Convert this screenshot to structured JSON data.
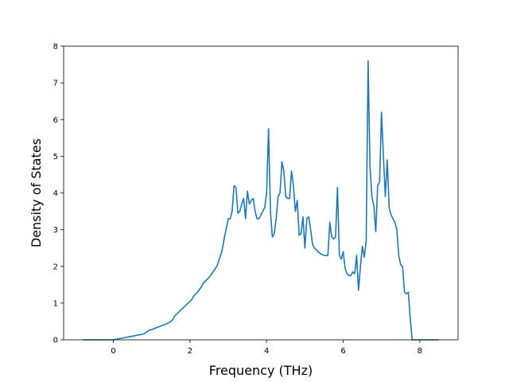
{
  "chart_data": {
    "type": "line",
    "title": "",
    "xlabel": "Frequency (THz)",
    "ylabel": "Density of States",
    "xlim": [
      -1.3,
      9.0
    ],
    "ylim": [
      0,
      8
    ],
    "xticks": [
      0,
      2,
      4,
      6,
      8
    ],
    "yticks": [
      0,
      1,
      2,
      3,
      4,
      5,
      6,
      7,
      8
    ],
    "grid": false,
    "legend": "none",
    "series": [
      {
        "color": "#1f77b4",
        "x": [
          -0.8,
          -0.6,
          -0.4,
          -0.2,
          0.0,
          0.2,
          0.4,
          0.6,
          0.8,
          0.85,
          0.9,
          0.95,
          1.0,
          1.1,
          1.2,
          1.3,
          1.4,
          1.5,
          1.55,
          1.6,
          1.7,
          1.8,
          1.9,
          2.0,
          2.05,
          2.1,
          2.2,
          2.3,
          2.35,
          2.4,
          2.5,
          2.6,
          2.7,
          2.8,
          2.85,
          2.9,
          3.0,
          3.05,
          3.1,
          3.15,
          3.2,
          3.25,
          3.3,
          3.35,
          3.4,
          3.45,
          3.5,
          3.55,
          3.6,
          3.65,
          3.7,
          3.75,
          3.8,
          3.85,
          3.9,
          3.95,
          4.0,
          4.05,
          4.1,
          4.15,
          4.2,
          4.25,
          4.3,
          4.35,
          4.4,
          4.45,
          4.5,
          4.55,
          4.6,
          4.65,
          4.7,
          4.75,
          4.8,
          4.85,
          4.9,
          4.95,
          5.0,
          5.05,
          5.1,
          5.15,
          5.2,
          5.25,
          5.3,
          5.35,
          5.4,
          5.5,
          5.6,
          5.65,
          5.7,
          5.75,
          5.8,
          5.85,
          5.9,
          5.95,
          6.0,
          6.05,
          6.1,
          6.15,
          6.2,
          6.25,
          6.3,
          6.35,
          6.4,
          6.45,
          6.5,
          6.55,
          6.6,
          6.65,
          6.7,
          6.75,
          6.8,
          6.85,
          6.9,
          6.95,
          7.0,
          7.05,
          7.1,
          7.15,
          7.2,
          7.25,
          7.3,
          7.35,
          7.4,
          7.45,
          7.5,
          7.55,
          7.6,
          7.65,
          7.7,
          7.75,
          7.8,
          7.9,
          8.1,
          8.3,
          8.5
        ],
        "y": [
          0.0,
          0.0,
          0.0,
          0.0,
          0.0,
          0.04,
          0.08,
          0.12,
          0.16,
          0.2,
          0.24,
          0.27,
          0.28,
          0.32,
          0.36,
          0.4,
          0.44,
          0.5,
          0.55,
          0.65,
          0.75,
          0.85,
          0.95,
          1.05,
          1.1,
          1.2,
          1.3,
          1.45,
          1.55,
          1.6,
          1.7,
          1.85,
          2.0,
          2.3,
          2.5,
          2.8,
          3.3,
          3.3,
          3.5,
          4.2,
          4.15,
          3.45,
          3.5,
          3.7,
          3.85,
          3.3,
          4.05,
          3.7,
          3.8,
          3.85,
          3.5,
          3.3,
          3.3,
          3.4,
          3.5,
          3.6,
          4.0,
          5.75,
          3.5,
          2.8,
          2.9,
          3.3,
          3.9,
          4.0,
          4.85,
          4.6,
          3.9,
          3.85,
          3.85,
          4.6,
          4.2,
          3.5,
          3.8,
          2.85,
          2.9,
          3.35,
          2.5,
          3.3,
          3.35,
          3.0,
          2.6,
          2.5,
          2.45,
          2.4,
          2.35,
          2.3,
          2.3,
          3.2,
          2.8,
          2.75,
          2.8,
          4.15,
          2.3,
          2.2,
          2.4,
          1.95,
          1.8,
          1.75,
          1.75,
          1.85,
          1.8,
          2.3,
          1.35,
          2.0,
          2.55,
          2.25,
          2.7,
          7.6,
          4.7,
          3.9,
          3.65,
          2.95,
          4.2,
          4.3,
          6.2,
          5.0,
          3.9,
          4.9,
          3.6,
          3.4,
          3.3,
          3.2,
          3.0,
          2.3,
          2.05,
          2.0,
          1.3,
          1.25,
          1.3,
          0.6,
          0.0,
          0.0,
          0.0,
          0.0,
          0.0
        ]
      }
    ]
  }
}
